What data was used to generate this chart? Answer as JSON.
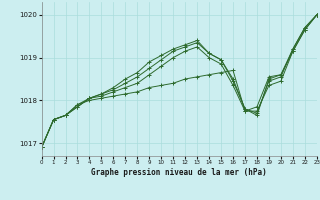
{
  "background_color": "#cceef0",
  "grid_color": "#aadddd",
  "line_color": "#2d6a2d",
  "title": "Graphe pression niveau de la mer (hPa)",
  "xlim": [
    0,
    23
  ],
  "ylim": [
    1016.7,
    1020.3
  ],
  "yticks": [
    1017,
    1018,
    1019,
    1020
  ],
  "xticks": [
    0,
    1,
    2,
    3,
    4,
    5,
    6,
    7,
    8,
    9,
    10,
    11,
    12,
    13,
    14,
    15,
    16,
    17,
    18,
    19,
    20,
    21,
    22,
    23
  ],
  "series": [
    [
      1016.9,
      1017.55,
      1017.65,
      1017.9,
      1018.0,
      1018.05,
      1018.1,
      1018.15,
      1018.2,
      1018.3,
      1018.35,
      1018.4,
      1018.5,
      1018.55,
      1018.6,
      1018.65,
      1018.7,
      1017.75,
      1017.85,
      1018.55,
      1018.6,
      1019.15,
      1019.65,
      1020.0
    ],
    [
      1016.9,
      1017.55,
      1017.65,
      1017.9,
      1018.05,
      1018.1,
      1018.2,
      1018.3,
      1018.4,
      1018.6,
      1018.8,
      1019.0,
      1019.15,
      1019.25,
      1019.0,
      1018.85,
      1018.35,
      1017.75,
      1017.75,
      1018.35,
      1018.45,
      1019.15,
      1019.65,
      1020.0
    ],
    [
      1016.9,
      1017.55,
      1017.65,
      1017.85,
      1018.05,
      1018.15,
      1018.25,
      1018.4,
      1018.55,
      1018.75,
      1018.95,
      1019.15,
      1019.25,
      1019.35,
      1019.1,
      1018.95,
      1018.45,
      1017.8,
      1017.7,
      1018.45,
      1018.55,
      1019.2,
      1019.7,
      1020.0
    ],
    [
      1016.9,
      1017.55,
      1017.65,
      1017.85,
      1018.05,
      1018.15,
      1018.3,
      1018.5,
      1018.65,
      1018.9,
      1019.05,
      1019.2,
      1019.3,
      1019.4,
      1019.1,
      1018.95,
      1018.5,
      1017.8,
      1017.65,
      1018.5,
      1018.6,
      1019.2,
      1019.7,
      1020.0
    ]
  ]
}
